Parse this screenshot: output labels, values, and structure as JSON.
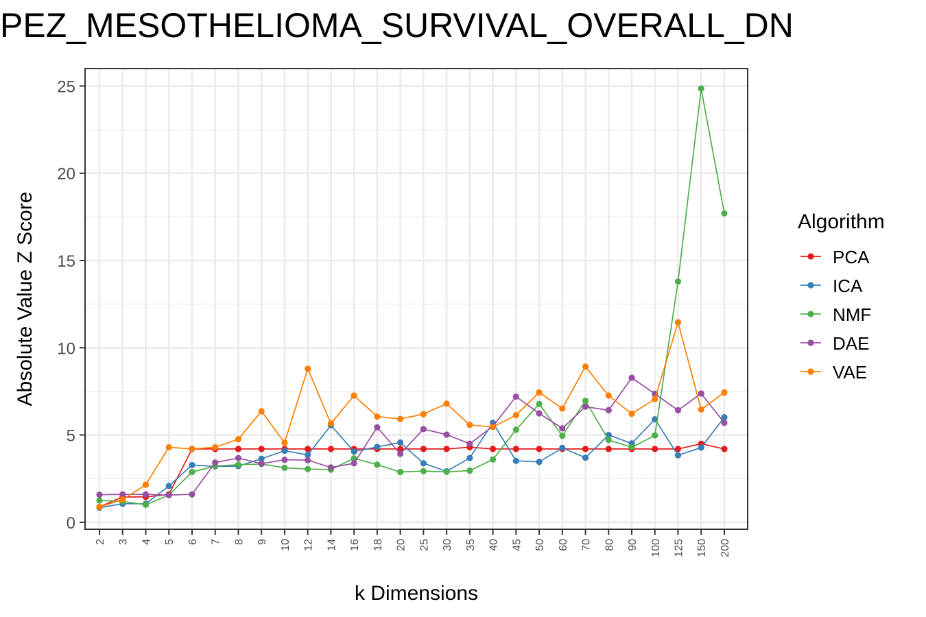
{
  "chart_data": {
    "type": "line",
    "title": "PEZ_MESOTHELIOMA_SURVIVAL_OVERALL_DN",
    "xlabel": "k Dimensions",
    "ylabel": "Absolute Value Z Score",
    "ylim": [
      -0.4,
      26
    ],
    "yticks": [
      "0",
      "5",
      "10",
      "15",
      "20",
      "25"
    ],
    "categories": [
      "2",
      "3",
      "4",
      "5",
      "6",
      "7",
      "8",
      "9",
      "10",
      "12",
      "14",
      "16",
      "18",
      "20",
      "25",
      "30",
      "35",
      "40",
      "45",
      "50",
      "60",
      "70",
      "80",
      "90",
      "100",
      "125",
      "150",
      "200"
    ],
    "legend_title": "Algorithm",
    "legend_position": "right",
    "grid": true,
    "series": [
      {
        "name": "PCA",
        "color": "#e41a1c",
        "values": [
          0.88,
          1.45,
          1.45,
          1.6,
          4.2,
          4.2,
          4.2,
          4.2,
          4.2,
          4.2,
          4.2,
          4.2,
          4.2,
          4.2,
          4.2,
          4.2,
          4.3,
          4.2,
          4.2,
          4.2,
          4.2,
          4.2,
          4.2,
          4.2,
          4.2,
          4.2,
          4.5,
          4.2
        ]
      },
      {
        "name": "ICA",
        "color": "#377eb8",
        "values": [
          0.84,
          1.06,
          1.06,
          2.08,
          3.28,
          3.2,
          3.22,
          3.64,
          4.1,
          3.86,
          5.56,
          4.05,
          4.32,
          4.57,
          3.38,
          2.92,
          3.68,
          5.7,
          3.52,
          3.46,
          4.26,
          3.7,
          5.0,
          4.52,
          5.9,
          3.84,
          4.28,
          6.02
        ]
      },
      {
        "name": "NMF",
        "color": "#4daf4a",
        "values": [
          1.25,
          1.2,
          1.0,
          1.56,
          2.88,
          3.22,
          3.3,
          3.34,
          3.12,
          3.05,
          3.02,
          3.66,
          3.3,
          2.88,
          2.93,
          2.89,
          2.96,
          3.6,
          5.3,
          6.78,
          4.96,
          6.96,
          4.72,
          4.3,
          4.98,
          13.8,
          24.85,
          17.7
        ]
      },
      {
        "name": "DAE",
        "color": "#984ea3",
        "values": [
          1.58,
          1.6,
          1.6,
          1.56,
          1.6,
          3.42,
          3.68,
          3.36,
          3.58,
          3.56,
          3.14,
          3.38,
          5.44,
          3.92,
          5.34,
          5.02,
          4.5,
          5.5,
          7.2,
          6.24,
          5.38,
          6.62,
          6.42,
          8.28,
          7.36,
          6.42,
          7.38,
          5.7
        ]
      },
      {
        "name": "VAE",
        "color": "#ff7f00",
        "values": [
          0.88,
          1.3,
          2.15,
          4.3,
          4.2,
          4.3,
          4.76,
          6.36,
          4.56,
          8.8,
          5.66,
          7.26,
          6.06,
          5.92,
          6.2,
          6.8,
          5.58,
          5.46,
          6.14,
          7.44,
          6.52,
          8.92,
          7.26,
          6.22,
          7.06,
          11.46,
          6.46,
          7.44
        ]
      }
    ]
  }
}
